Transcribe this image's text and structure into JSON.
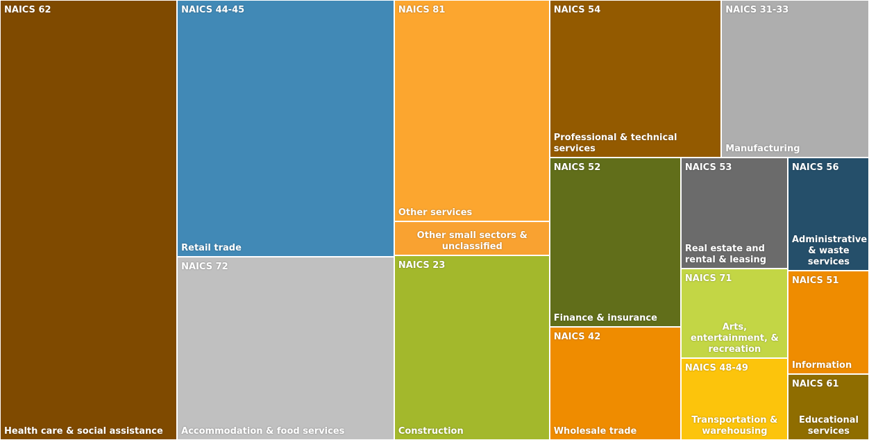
{
  "chart_data": {
    "type": "treemap",
    "codes": [
      "NAICS 62",
      "NAICS 44-45",
      "NAICS 72",
      "NAICS 81",
      null,
      "NAICS 23",
      "NAICS 54",
      "NAICS 31-33",
      "NAICS 52",
      "NAICS 42",
      "NAICS 53",
      "NAICS 56",
      "NAICS 71",
      "NAICS 48-49",
      "NAICS 51",
      "NAICS 61"
    ],
    "categories": [
      "Health care & social assistance",
      "Retail trade",
      "Accommodation & food services",
      "Other services",
      "Other small sectors & unclassified",
      "Construction",
      "Professional & technical services",
      "Manufacturing",
      "Finance & insurance",
      "Wholesale trade",
      "Real estate and rental & leasing",
      "Administrative & waste services",
      "Arts, entertainment, & recreation",
      "Transportation & warehousing",
      "Information",
      "Educational services"
    ],
    "values": [
      20.4,
      14.6,
      10.4,
      9.0,
      1.4,
      7.5,
      7.1,
      6.1,
      5.8,
      3.9,
      3.1,
      2.4,
      2.5,
      2.3,
      2.2,
      1.4
    ],
    "colors": [
      "#7f4a00",
      "#4189b6",
      "#c0c0c0",
      "#fca62f",
      "#f9a231",
      "#a3b82c",
      "#935a00",
      "#aeaeae",
      "#616e1a",
      "#ef8c00",
      "#6b6b6b",
      "#254f6a",
      "#c3d645",
      "#fcc40c",
      "#ef8c00",
      "#8f6d00"
    ]
  }
}
